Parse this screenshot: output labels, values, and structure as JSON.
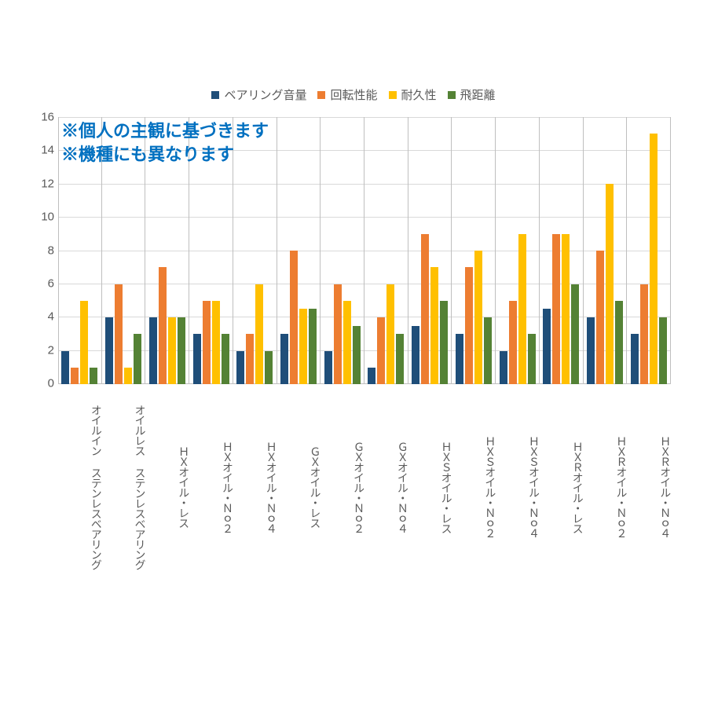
{
  "chart": {
    "type": "bar",
    "background_color": "#ffffff",
    "grid_color": "#d9d9d9",
    "axis_color": "#bfbfbf",
    "label_color": "#595959",
    "ylim": [
      0,
      16
    ],
    "ytick_step": 2,
    "yticks": [
      0,
      2,
      4,
      6,
      8,
      10,
      12,
      14,
      16
    ],
    "legend_fontsize": 15,
    "axis_label_fontsize": 15,
    "xlabel_writing_mode": "vertical-rl",
    "series": [
      {
        "name": "ベアリング音量",
        "color": "#1f4e79"
      },
      {
        "name": "回転性能",
        "color": "#ed7d31"
      },
      {
        "name": "耐久性",
        "color": "#ffc000"
      },
      {
        "name": "飛距離",
        "color": "#548235"
      }
    ],
    "categories": [
      "オイルイン ステンレスベアリング",
      "オイルレス ステンレスベアリング",
      "ＨＸオイル・レス",
      "ＨＸオイル・Ｎｏ２",
      "ＨＸオイル・Ｎｏ４",
      "ＧＸオイル・レス",
      "ＧＸオイル・Ｎｏ２",
      "ＧＸオイル・Ｎｏ４",
      "ＨＸＳオイル・レス",
      "ＨＸＳオイル・Ｎｏ２",
      "ＨＸＳオイル・Ｎｏ４",
      "ＨＸＲオイル・レス",
      "ＨＸＲオイル・Ｎｏ２",
      "ＨＸＲオイル・Ｎｏ４"
    ],
    "values": [
      [
        2,
        1,
        5,
        1
      ],
      [
        4,
        6,
        1,
        3
      ],
      [
        4,
        7,
        4,
        4
      ],
      [
        3,
        5,
        5,
        3
      ],
      [
        2,
        3,
        6,
        2
      ],
      [
        3,
        8,
        4.5,
        4.5
      ],
      [
        2,
        6,
        5,
        3.5
      ],
      [
        1,
        4,
        6,
        3
      ],
      [
        3.5,
        9,
        7,
        5
      ],
      [
        3,
        7,
        8,
        4
      ],
      [
        2,
        5,
        9,
        3
      ],
      [
        4.5,
        9,
        9,
        6
      ],
      [
        4,
        8,
        12,
        5
      ],
      [
        3,
        6,
        15,
        4
      ]
    ],
    "annotations": {
      "line1": "※個人の主観に基づきます",
      "line2": "※機種にも異なります",
      "color": "#0070c0",
      "fontsize": 22,
      "fontweight": "bold"
    }
  }
}
